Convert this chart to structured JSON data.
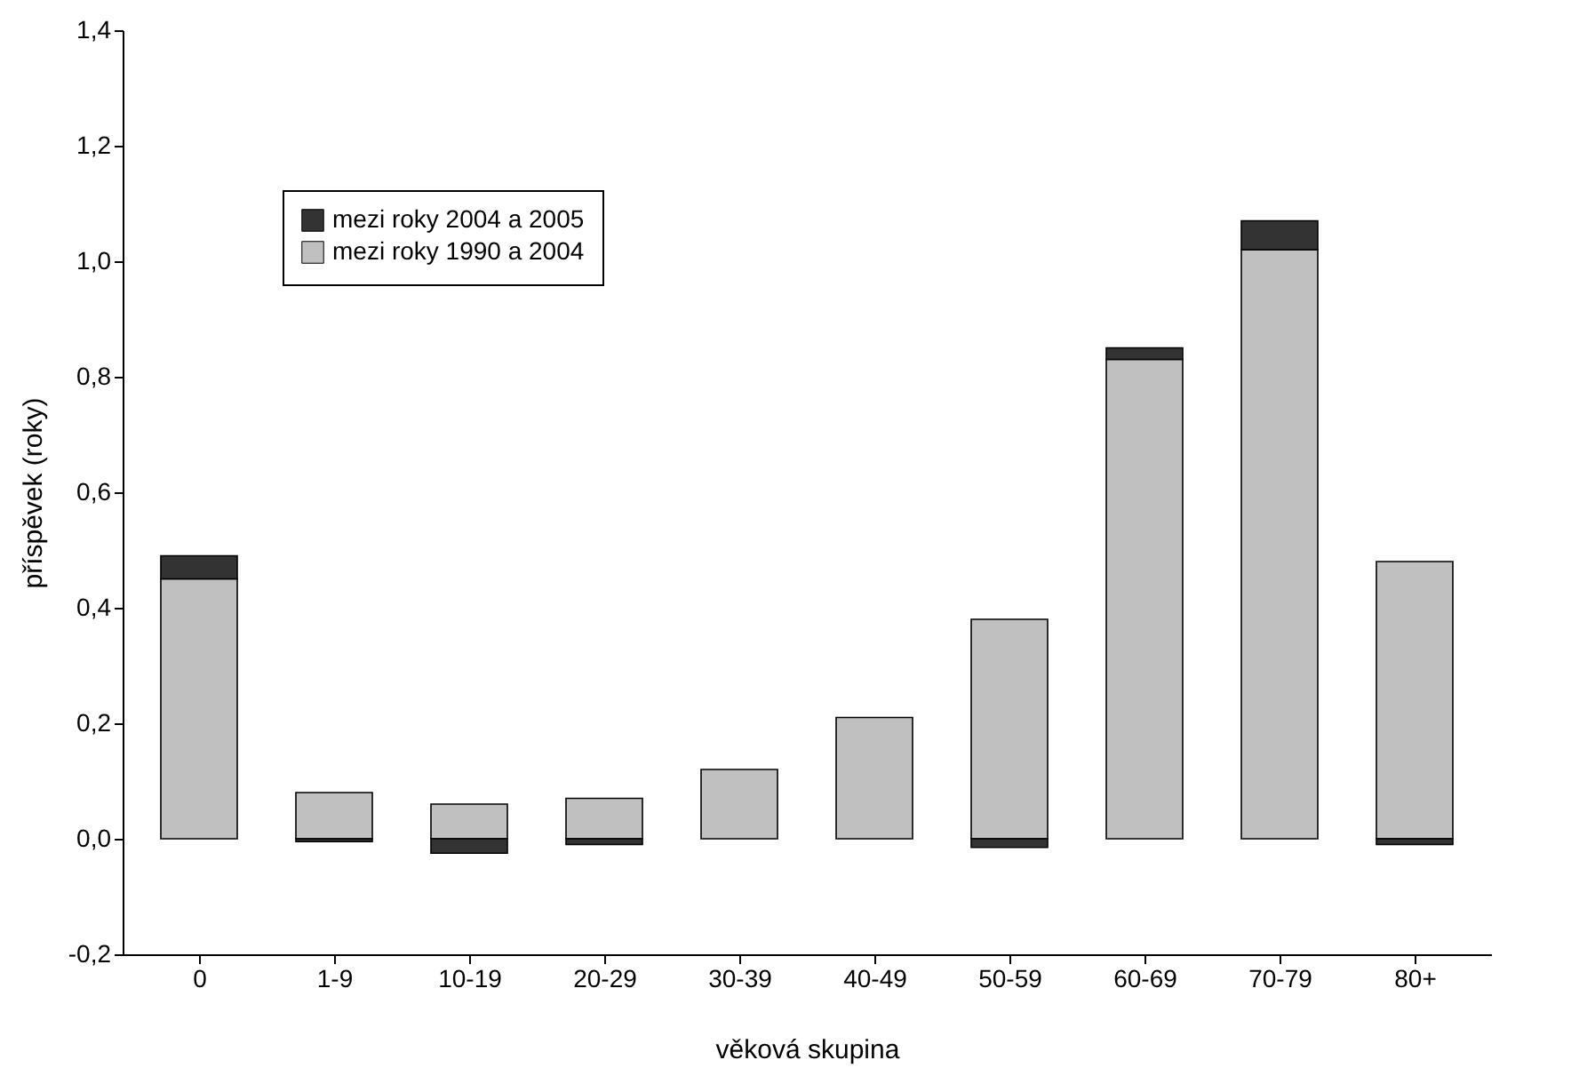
{
  "chart_data": {
    "type": "bar",
    "stacked": true,
    "xlabel": "věková skupina",
    "ylabel": "příspěvek (roky)",
    "categories": [
      "0",
      "1-9",
      "10-19",
      "20-29",
      "30-39",
      "40-49",
      "50-59",
      "60-69",
      "70-79",
      "80+"
    ],
    "series": [
      {
        "name": "mezi roky 1990 a 2004",
        "color": "#c0c0c0",
        "values": [
          0.45,
          0.08,
          0.06,
          0.07,
          0.12,
          0.21,
          0.38,
          0.83,
          1.02,
          0.48
        ]
      },
      {
        "name": "mezi roky 2004 a 2005",
        "color": "#333333",
        "values": [
          0.04,
          -0.005,
          -0.025,
          -0.01,
          0,
          0,
          -0.015,
          0.02,
          0.05,
          -0.01
        ]
      }
    ],
    "ylim": [
      -0.2,
      1.4
    ],
    "yticks": [
      {
        "value": -0.2,
        "label": "-0,2"
      },
      {
        "value": 0,
        "label": "0,0"
      },
      {
        "value": 0.2,
        "label": "0,2"
      },
      {
        "value": 0.4,
        "label": "0,4"
      },
      {
        "value": 0.6,
        "label": "0,6"
      },
      {
        "value": 0.8,
        "label": "0,8"
      },
      {
        "value": 1.0,
        "label": "1,0"
      },
      {
        "value": 1.2,
        "label": "1,2"
      },
      {
        "value": 1.4,
        "label": "1,4"
      }
    ],
    "grid": false,
    "legend": "top left"
  }
}
